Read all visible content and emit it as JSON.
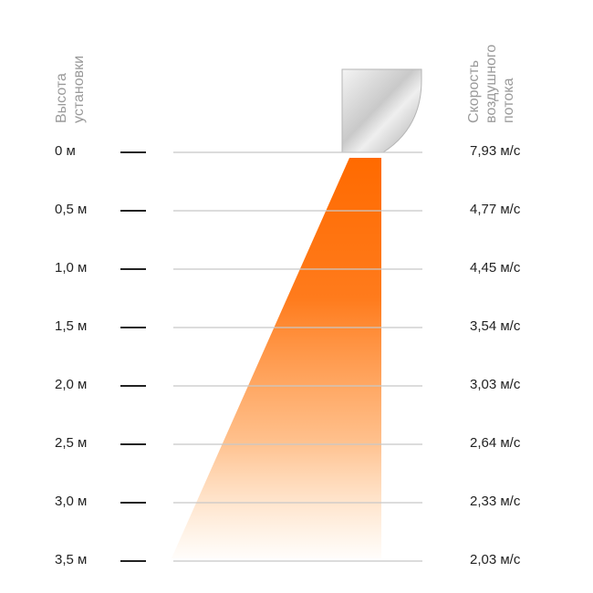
{
  "header": {
    "left_label": [
      "Высота",
      "установки"
    ],
    "right_label": [
      "Скорость",
      "воздушного",
      "потока"
    ]
  },
  "rows": [
    {
      "height": "0 м",
      "speed": "7,93 м/с"
    },
    {
      "height": "0,5 м",
      "speed": "4,77 м/с"
    },
    {
      "height": "1,0 м",
      "speed": "4,45 м/с"
    },
    {
      "height": "1,5 м",
      "speed": "3,54 м/с"
    },
    {
      "height": "2,0 м",
      "speed": "3,03 м/с"
    },
    {
      "height": "2,5 м",
      "speed": "2,64 м/с"
    },
    {
      "height": "3,0 м",
      "speed": "2,33 м/с"
    },
    {
      "height": "3,5 м",
      "speed": "2,03 м/с"
    }
  ],
  "colors": {
    "airflow": "#ff6a00",
    "grid_line": "#c8c8c8",
    "label_gray": "#9a9a9a",
    "text": "#222222"
  }
}
